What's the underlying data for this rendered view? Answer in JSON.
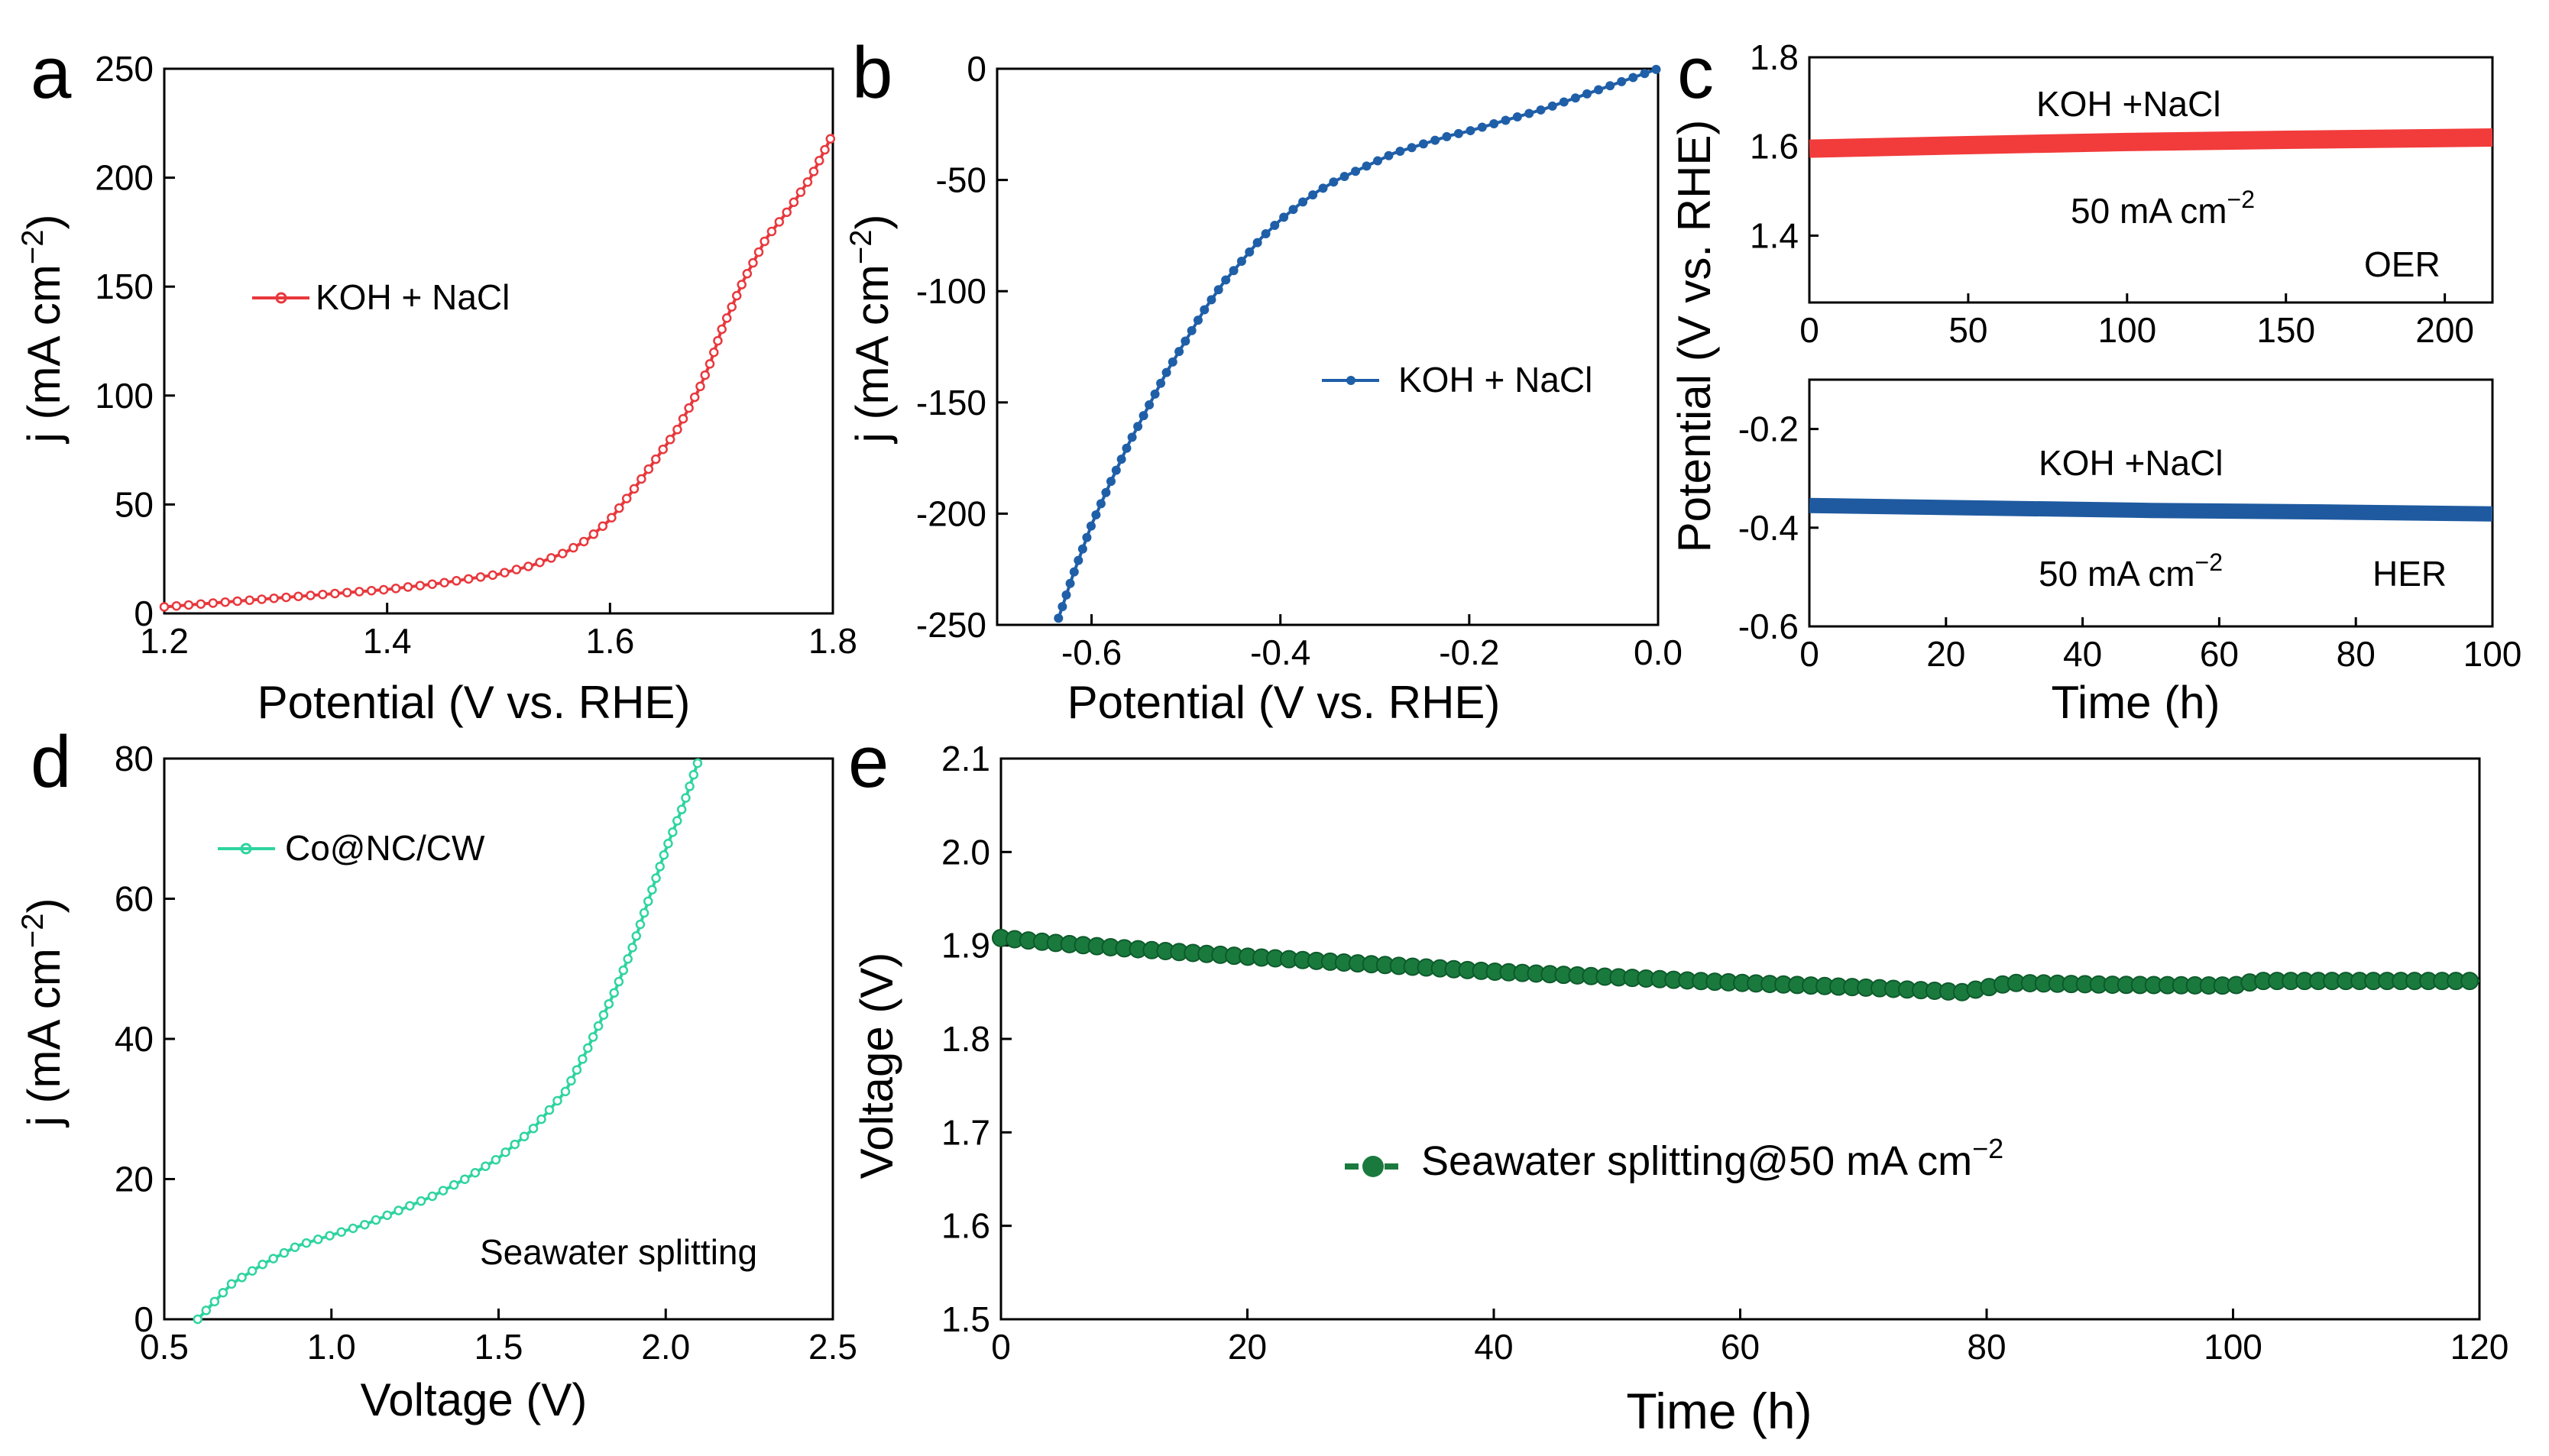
{
  "chart_data": [
    {
      "panel": "a",
      "type": "line",
      "xlabel": "Potential (V vs. RHE)",
      "ylabel": "j (mA cm",
      "ylabel_sup": "−2",
      "ylabel_end": ")",
      "xlim": [
        1.2,
        1.8
      ],
      "ylim": [
        0,
        250
      ],
      "xticks": [
        1.2,
        1.4,
        1.6,
        1.8
      ],
      "xtick_labels": [
        "1.2",
        "1.4",
        "1.6",
        "1.8"
      ],
      "yticks": [
        0,
        50,
        100,
        150,
        200,
        250
      ],
      "ytick_labels": [
        "0",
        "50",
        "100",
        "150",
        "200",
        "250"
      ],
      "series": [
        {
          "name": "KOH + NaCl",
          "color": "#e8383d",
          "x": [
            1.2,
            1.25,
            1.3,
            1.35,
            1.4,
            1.45,
            1.5,
            1.53,
            1.56,
            1.58,
            1.6,
            1.62,
            1.64,
            1.66,
            1.68,
            1.69,
            1.7,
            1.72,
            1.74,
            1.76,
            1.78,
            1.79,
            1.8
          ],
          "y": [
            3,
            5,
            7,
            9,
            11,
            14,
            18,
            22,
            28,
            34,
            43,
            56,
            70,
            84,
            103,
            115,
            130,
            153,
            172,
            185,
            200,
            210,
            220
          ]
        }
      ]
    },
    {
      "panel": "b",
      "type": "line",
      "xlabel": "Potential (V vs. RHE)",
      "ylabel": "j (mA cm",
      "ylabel_sup": "−2",
      "ylabel_end": ")",
      "xlim": [
        -0.7,
        0.0
      ],
      "ylim": [
        -250,
        0
      ],
      "xticks": [
        -0.6,
        -0.4,
        -0.2,
        0.0
      ],
      "xtick_labels": [
        "-0.6",
        "-0.4",
        "-0.2",
        "0.0"
      ],
      "yticks": [
        -250,
        -200,
        -150,
        -100,
        -50,
        0
      ],
      "ytick_labels": [
        "-250",
        "-200",
        "-150",
        "-100",
        "-50",
        "0"
      ],
      "series": [
        {
          "name": "KOH + NaCl",
          "color": "#1f5fa8",
          "x": [
            -0.635,
            -0.62,
            -0.6,
            -0.58,
            -0.56,
            -0.54,
            -0.52,
            -0.5,
            -0.48,
            -0.46,
            -0.44,
            -0.42,
            -0.4,
            -0.38,
            -0.36,
            -0.34,
            -0.32,
            -0.3,
            -0.28,
            -0.25,
            -0.22,
            -0.2,
            -0.16,
            -0.12,
            -0.08,
            -0.04,
            0.0
          ],
          "y": [
            -247,
            -228,
            -205,
            -186,
            -168,
            -152,
            -136,
            -122,
            -108,
            -96,
            -86,
            -76,
            -68,
            -61,
            -55,
            -50,
            -46,
            -42,
            -38,
            -34,
            -30,
            -28,
            -23,
            -18,
            -12,
            -6,
            0
          ]
        }
      ]
    },
    {
      "panel": "c-top",
      "type": "line",
      "xlabel": "",
      "ylabel": "",
      "xlim": [
        0,
        215
      ],
      "ylim": [
        1.25,
        1.8
      ],
      "xticks": [
        0,
        50,
        100,
        150,
        200
      ],
      "xtick_labels": [
        "0",
        "50",
        "100",
        "150",
        "200"
      ],
      "yticks": [
        1.4,
        1.6,
        1.8
      ],
      "ytick_labels": [
        "1.4",
        "1.6",
        "1.8"
      ],
      "annotations": [
        "KOH +NaCl",
        "50 mA cm",
        "OER"
      ],
      "series": [
        {
          "name": "OER",
          "color": "#f23b3b",
          "x": [
            0,
            50,
            100,
            150,
            215
          ],
          "y": [
            1.595,
            1.603,
            1.61,
            1.615,
            1.62
          ]
        }
      ]
    },
    {
      "panel": "c-bottom",
      "type": "line",
      "xlabel": "Time (h)",
      "ylabel": "Potential (V vs. RHE)",
      "xlim": [
        0,
        100
      ],
      "ylim": [
        -0.6,
        -0.1
      ],
      "xticks": [
        0,
        20,
        40,
        60,
        80,
        100
      ],
      "xtick_labels": [
        "0",
        "20",
        "40",
        "60",
        "80",
        "100"
      ],
      "yticks": [
        -0.6,
        -0.4,
        -0.2
      ],
      "ytick_labels": [
        "-0.6",
        "-0.4",
        "-0.2"
      ],
      "annotations": [
        "KOH +NaCl",
        "50 mA cm",
        "HER"
      ],
      "series": [
        {
          "name": "HER",
          "color": "#1f5aa0",
          "x": [
            0,
            25,
            50,
            75,
            100
          ],
          "y": [
            -0.355,
            -0.36,
            -0.365,
            -0.368,
            -0.372
          ]
        }
      ]
    },
    {
      "panel": "d",
      "type": "line",
      "xlabel": "Voltage (V)",
      "ylabel": "j (mA cm",
      "ylabel_sup": "−2",
      "ylabel_end": ")",
      "xlim": [
        0.5,
        2.5
      ],
      "ylim": [
        0,
        80
      ],
      "xticks": [
        0.5,
        1.0,
        1.5,
        2.0,
        2.5
      ],
      "xtick_labels": [
        "0.5",
        "1.0",
        "1.5",
        "2.0",
        "2.5"
      ],
      "yticks": [
        0,
        20,
        40,
        60,
        80
      ],
      "ytick_labels": [
        "0",
        "20",
        "40",
        "60",
        "80"
      ],
      "annotations": [
        "Seawater splitting"
      ],
      "series": [
        {
          "name": "Co@NC/CW",
          "color": "#2fd4a0",
          "x": [
            0.6,
            0.65,
            0.7,
            0.8,
            0.9,
            1.0,
            1.1,
            1.2,
            1.3,
            1.4,
            1.5,
            1.6,
            1.7,
            1.75,
            1.8,
            1.85,
            1.9,
            1.95,
            2.0,
            2.05,
            2.1
          ],
          "y": [
            0,
            2.5,
            5,
            8,
            10.5,
            12,
            13.5,
            15.5,
            17.5,
            20,
            23,
            27,
            32.5,
            37,
            42,
            47,
            53,
            60,
            67,
            73,
            80
          ]
        }
      ]
    },
    {
      "panel": "e",
      "type": "line",
      "xlabel": "Time (h)",
      "ylabel": "Voltage (V)",
      "xlim": [
        0,
        120
      ],
      "ylim": [
        1.5,
        2.1
      ],
      "xticks": [
        0,
        20,
        40,
        60,
        80,
        100,
        120
      ],
      "xtick_labels": [
        "0",
        "20",
        "40",
        "60",
        "80",
        "100",
        "120"
      ],
      "yticks": [
        1.5,
        1.6,
        1.7,
        1.8,
        1.9,
        2.0,
        2.1
      ],
      "ytick_labels": [
        "1.5",
        "1.6",
        "1.7",
        "1.8",
        "1.9",
        "2.0",
        "2.1"
      ],
      "series": [
        {
          "name": "Seawater splitting@50 mA cm",
          "color": "#1a7a3e",
          "x": [
            0,
            5,
            10,
            20,
            30,
            40,
            50,
            60,
            70,
            75,
            78,
            80,
            82,
            90,
            100,
            102,
            110,
            120
          ],
          "y": [
            1.908,
            1.902,
            1.897,
            1.888,
            1.88,
            1.872,
            1.866,
            1.86,
            1.855,
            1.852,
            1.85,
            1.855,
            1.86,
            1.858,
            1.857,
            1.862,
            1.862,
            1.862
          ]
        }
      ]
    }
  ],
  "panel_labels": [
    "a",
    "b",
    "c",
    "d",
    "e"
  ],
  "legends": {
    "a": "KOH + NaCl",
    "b": "KOH + NaCl",
    "d": "Co@NC/CW",
    "e": "Seawater splitting@50 mA cm",
    "e_sup": "−2"
  },
  "annotations": {
    "c_top_electrolyte": "KOH +NaCl",
    "c_top_current": "50 mA cm",
    "c_top_current_sup": "−2",
    "c_top_type": "OER",
    "c_bot_electrolyte": "KOH +NaCl",
    "c_bot_current": "50 mA cm",
    "c_bot_current_sup": "−2",
    "c_bot_type": "HER",
    "d_note": "Seawater splitting"
  },
  "axis_labels": {
    "a_x": "Potential (V vs. RHE)",
    "a_y": "j (mA cm",
    "b_x": "Potential (V vs. RHE)",
    "b_y": "j (mA cm",
    "c_x": "Time (h)",
    "c_y": "Potential (V vs. RHE)",
    "d_x": "Voltage (V)",
    "d_y": "j (mA cm",
    "e_x": "Time (h)",
    "e_y": "Voltage (V)",
    "y_sup": "−2",
    "y_end": ")"
  }
}
